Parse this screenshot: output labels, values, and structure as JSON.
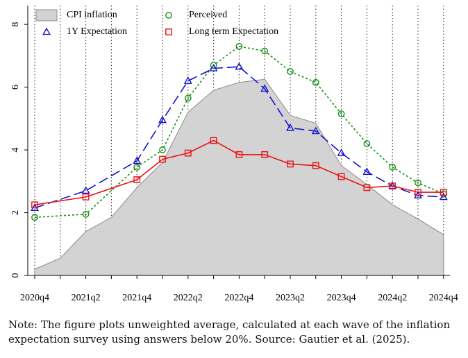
{
  "chart_data": {
    "type": "line",
    "x": [
      "2020q4",
      "2021q1",
      "2021q2",
      "2021q3",
      "2021q4",
      "2022q1",
      "2022q2",
      "2022q3",
      "2022q4",
      "2023q1",
      "2023q2",
      "2023q3",
      "2023q4",
      "2024q1",
      "2024q2",
      "2024q3",
      "2024q4"
    ],
    "xticks": [
      "2020q4",
      "2021q2",
      "2021q4",
      "2022q2",
      "2022q4",
      "2023q2",
      "2023q4",
      "2024q2",
      "2024q4"
    ],
    "ylim": [
      0,
      8.6
    ],
    "yticks": [
      0,
      2,
      4,
      6,
      8
    ],
    "grid": "vertical dotted lines at each quarter",
    "legend_position": "top-left",
    "series": [
      {
        "name": "CPI inflation",
        "style": "area",
        "color": "#d3d3d3",
        "x": [
          "2020q4",
          "2021q1",
          "2021q2",
          "2021q3",
          "2021q4",
          "2022q1",
          "2022q2",
          "2022q3",
          "2022q4",
          "2023q1",
          "2023q2",
          "2023q3",
          "2023q4",
          "2024q1",
          "2024q2",
          "2024q3",
          "2024q4"
        ],
        "values": [
          0.2,
          0.55,
          1.4,
          1.85,
          2.8,
          3.6,
          5.2,
          5.9,
          6.15,
          6.25,
          5.1,
          4.85,
          3.5,
          2.9,
          2.25,
          1.8,
          1.3
        ]
      },
      {
        "name": "Perceived",
        "style": "short-dash",
        "marker": "circle",
        "color": "#129012",
        "x": [
          "2020q4",
          "2021q2",
          "2021q4",
          "2022q1",
          "2022q2",
          "2022q3",
          "2022q4",
          "2023q1",
          "2023q2",
          "2023q3",
          "2023q4",
          "2024q1",
          "2024q2",
          "2024q3",
          "2024q4"
        ],
        "values": [
          1.85,
          1.95,
          3.45,
          4.0,
          5.65,
          6.7,
          7.3,
          7.15,
          6.5,
          6.15,
          5.15,
          4.2,
          3.45,
          2.95,
          2.6
        ]
      },
      {
        "name": "1Y Expectation",
        "style": "long-dash",
        "marker": "triangle",
        "color": "#1414cc",
        "x": [
          "2020q4",
          "2021q2",
          "2021q4",
          "2022q1",
          "2022q2",
          "2022q3",
          "2022q4",
          "2023q1",
          "2023q2",
          "2023q3",
          "2023q4",
          "2024q1",
          "2024q2",
          "2024q3",
          "2024q4"
        ],
        "values": [
          2.15,
          2.7,
          3.65,
          4.95,
          6.2,
          6.6,
          6.65,
          5.95,
          4.7,
          4.6,
          3.9,
          3.3,
          2.85,
          2.55,
          2.5
        ]
      },
      {
        "name": "Long term Expectation",
        "style": "solid",
        "marker": "square",
        "color": "#ee1111",
        "x": [
          "2020q4",
          "2021q2",
          "2021q4",
          "2022q1",
          "2022q2",
          "2022q3",
          "2022q4",
          "2023q1",
          "2023q2",
          "2023q3",
          "2023q4",
          "2024q1",
          "2024q2",
          "2024q3",
          "2024q4"
        ],
        "values": [
          2.25,
          2.5,
          3.05,
          3.7,
          3.9,
          4.3,
          3.85,
          3.85,
          3.55,
          3.5,
          3.15,
          2.8,
          2.85,
          2.65,
          2.65
        ]
      }
    ]
  },
  "note": "Note: The figure plots unweighted average, calculated at each wave of the inflation expectation survey using answers below 20%. Source: Gautier et al. (2025)."
}
